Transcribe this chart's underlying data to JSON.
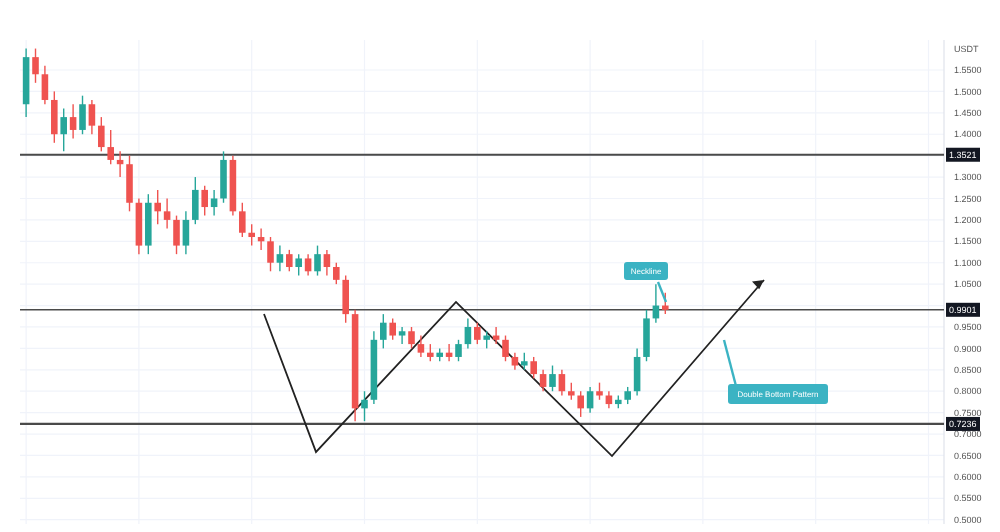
{
  "chart_data": {
    "type": "candlestick",
    "ylabel": "USDT",
    "categories": [
      null,
      null,
      null,
      null,
      null,
      null,
      null,
      null,
      null,
      null,
      null,
      null,
      null,
      null,
      null,
      null,
      null,
      null,
      null,
      null,
      null,
      null,
      null,
      null,
      null,
      null,
      null,
      null,
      null,
      null,
      null,
      null,
      null,
      null,
      null,
      null,
      null,
      null,
      null,
      null,
      null,
      null,
      null,
      null,
      null,
      null,
      null,
      null,
      null,
      null,
      null,
      null,
      null,
      null,
      null,
      null,
      null,
      null,
      null,
      null,
      null,
      null,
      null,
      null,
      null,
      null,
      null,
      null,
      null,
      null,
      null,
      null,
      null,
      null,
      null,
      null,
      null,
      null,
      null,
      null,
      null,
      null,
      null,
      null,
      null,
      null,
      null,
      null,
      null,
      null,
      null,
      null,
      null,
      null,
      null,
      null,
      null,
      null
    ],
    "ohlc": [
      [
        1.47,
        1.6,
        1.44,
        1.58
      ],
      [
        1.58,
        1.6,
        1.52,
        1.54
      ],
      [
        1.54,
        1.56,
        1.47,
        1.48
      ],
      [
        1.48,
        1.5,
        1.38,
        1.4
      ],
      [
        1.4,
        1.46,
        1.36,
        1.44
      ],
      [
        1.44,
        1.47,
        1.39,
        1.41
      ],
      [
        1.41,
        1.49,
        1.4,
        1.47
      ],
      [
        1.47,
        1.48,
        1.4,
        1.42
      ],
      [
        1.42,
        1.44,
        1.36,
        1.37
      ],
      [
        1.37,
        1.41,
        1.33,
        1.34
      ],
      [
        1.34,
        1.36,
        1.3,
        1.33
      ],
      [
        1.33,
        1.35,
        1.22,
        1.24
      ],
      [
        1.24,
        1.25,
        1.12,
        1.14
      ],
      [
        1.14,
        1.26,
        1.12,
        1.24
      ],
      [
        1.24,
        1.27,
        1.19,
        1.22
      ],
      [
        1.22,
        1.25,
        1.18,
        1.2
      ],
      [
        1.2,
        1.21,
        1.12,
        1.14
      ],
      [
        1.14,
        1.22,
        1.12,
        1.2
      ],
      [
        1.2,
        1.3,
        1.19,
        1.27
      ],
      [
        1.27,
        1.28,
        1.21,
        1.23
      ],
      [
        1.23,
        1.27,
        1.21,
        1.25
      ],
      [
        1.25,
        1.36,
        1.24,
        1.34
      ],
      [
        1.34,
        1.35,
        1.21,
        1.22
      ],
      [
        1.22,
        1.24,
        1.16,
        1.17
      ],
      [
        1.17,
        1.19,
        1.14,
        1.16
      ],
      [
        1.16,
        1.18,
        1.13,
        1.15
      ],
      [
        1.15,
        1.16,
        1.08,
        1.1
      ],
      [
        1.1,
        1.14,
        1.08,
        1.12
      ],
      [
        1.12,
        1.13,
        1.08,
        1.09
      ],
      [
        1.09,
        1.12,
        1.07,
        1.11
      ],
      [
        1.11,
        1.12,
        1.07,
        1.08
      ],
      [
        1.08,
        1.14,
        1.07,
        1.12
      ],
      [
        1.12,
        1.13,
        1.07,
        1.09
      ],
      [
        1.09,
        1.1,
        1.05,
        1.06
      ],
      [
        1.06,
        1.07,
        0.96,
        0.98
      ],
      [
        0.98,
        0.99,
        0.73,
        0.76
      ],
      [
        0.76,
        0.8,
        0.73,
        0.78
      ],
      [
        0.78,
        0.94,
        0.77,
        0.92
      ],
      [
        0.92,
        0.98,
        0.9,
        0.96
      ],
      [
        0.96,
        0.97,
        0.92,
        0.93
      ],
      [
        0.93,
        0.95,
        0.91,
        0.94
      ],
      [
        0.94,
        0.95,
        0.9,
        0.91
      ],
      [
        0.91,
        0.93,
        0.88,
        0.89
      ],
      [
        0.89,
        0.91,
        0.87,
        0.88
      ],
      [
        0.88,
        0.9,
        0.87,
        0.89
      ],
      [
        0.89,
        0.91,
        0.87,
        0.88
      ],
      [
        0.88,
        0.92,
        0.87,
        0.91
      ],
      [
        0.91,
        0.97,
        0.9,
        0.95
      ],
      [
        0.95,
        0.96,
        0.91,
        0.92
      ],
      [
        0.92,
        0.94,
        0.9,
        0.93
      ],
      [
        0.93,
        0.95,
        0.91,
        0.92
      ],
      [
        0.92,
        0.93,
        0.87,
        0.88
      ],
      [
        0.88,
        0.89,
        0.85,
        0.86
      ],
      [
        0.86,
        0.89,
        0.85,
        0.87
      ],
      [
        0.87,
        0.88,
        0.83,
        0.84
      ],
      [
        0.84,
        0.85,
        0.8,
        0.81
      ],
      [
        0.81,
        0.86,
        0.8,
        0.84
      ],
      [
        0.84,
        0.85,
        0.79,
        0.8
      ],
      [
        0.8,
        0.82,
        0.78,
        0.79
      ],
      [
        0.79,
        0.8,
        0.74,
        0.76
      ],
      [
        0.76,
        0.81,
        0.75,
        0.8
      ],
      [
        0.8,
        0.82,
        0.78,
        0.79
      ],
      [
        0.79,
        0.8,
        0.76,
        0.77
      ],
      [
        0.77,
        0.79,
        0.76,
        0.78
      ],
      [
        0.78,
        0.81,
        0.77,
        0.8
      ],
      [
        0.8,
        0.9,
        0.79,
        0.88
      ],
      [
        0.88,
        0.99,
        0.87,
        0.97
      ],
      [
        0.97,
        1.05,
        0.96,
        1.0
      ],
      [
        1.0,
        1.03,
        0.98,
        0.99
      ],
      null,
      null,
      null,
      null,
      null,
      null,
      null,
      null,
      null,
      null,
      null,
      null,
      null,
      null,
      null,
      null,
      null,
      null,
      null,
      null,
      null,
      null,
      null,
      null,
      null,
      null,
      null,
      null,
      null
    ],
    "ylim": [
      0.49,
      1.62
    ],
    "yticks": [
      {
        "value": 0.5,
        "label": "0.5000"
      },
      {
        "value": 0.55,
        "label": "0.5500"
      },
      {
        "value": 0.6,
        "label": "0.6000"
      },
      {
        "value": 0.65,
        "label": "0.6500"
      },
      {
        "value": 0.7,
        "label": "0.7000"
      },
      {
        "value": 0.75,
        "label": "0.7500"
      },
      {
        "value": 0.8,
        "label": "0.8000"
      },
      {
        "value": 0.85,
        "label": "0.8500"
      },
      {
        "value": 0.9,
        "label": "0.9000"
      },
      {
        "value": 0.95,
        "label": "0.9500"
      },
      {
        "value": 1.0,
        "label": null
      },
      {
        "value": 1.05,
        "label": "1.0500"
      },
      {
        "value": 1.1,
        "label": "1.1000"
      },
      {
        "value": 1.15,
        "label": "1.1500"
      },
      {
        "value": 1.2,
        "label": "1.2000"
      },
      {
        "value": 1.25,
        "label": "1.2500"
      },
      {
        "value": 1.3,
        "label": "1.3000"
      },
      {
        "value": 1.35,
        "label": null
      },
      {
        "value": 1.4,
        "label": "1.4000"
      },
      {
        "value": 1.45,
        "label": "1.4500"
      },
      {
        "value": 1.5,
        "label": "1.5000"
      },
      {
        "value": 1.55,
        "label": "1.5500"
      }
    ],
    "grid": true,
    "ref_lines": [
      {
        "axis": "y",
        "value": 1.3521,
        "label": "1.3521",
        "color": "#4a4a4a"
      },
      {
        "axis": "y",
        "value": 0.9901,
        "label": "0.9901",
        "color": "#4a4a4a"
      },
      {
        "axis": "y",
        "value": 0.7236,
        "label": "0.7236",
        "color": "#4a4a4a"
      }
    ],
    "annotations": [
      "Neckline",
      "Double Bottom Pattern"
    ]
  }
}
